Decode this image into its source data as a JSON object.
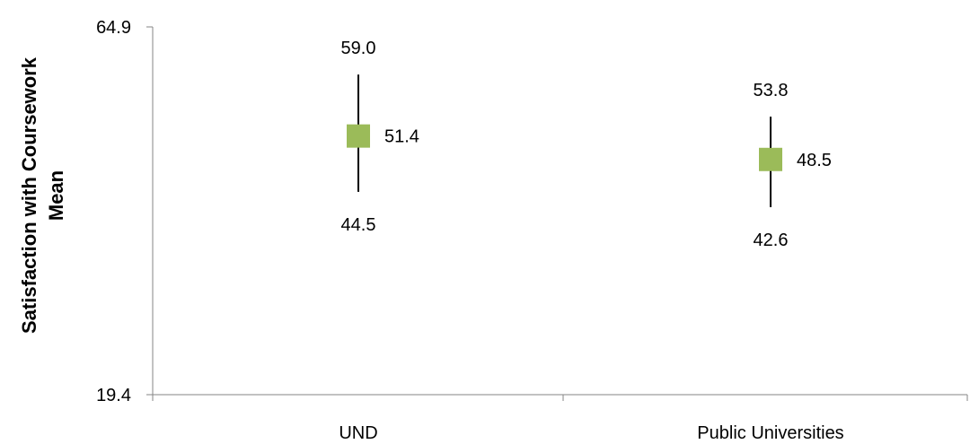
{
  "chart_data": {
    "type": "scatter",
    "title": "",
    "ylabel_lines": [
      "Satisfaction with Coursework",
      "Mean"
    ],
    "xlabel": "",
    "ylim": [
      19.4,
      64.9
    ],
    "y_tick_labels": [
      "64.9",
      "19.4"
    ],
    "categories": [
      "UND",
      "Public Universities"
    ],
    "series": [
      {
        "values": [
          51.4,
          48.5
        ],
        "high": [
          59.0,
          53.8
        ],
        "low": [
          44.5,
          42.6
        ],
        "value_labels": [
          "51.4",
          "48.5"
        ],
        "high_labels": [
          "59.0",
          "53.8"
        ],
        "low_labels": [
          "44.5",
          "42.6"
        ]
      }
    ],
    "marker_color": "#9BBB59",
    "grid": false,
    "legend": "none"
  }
}
